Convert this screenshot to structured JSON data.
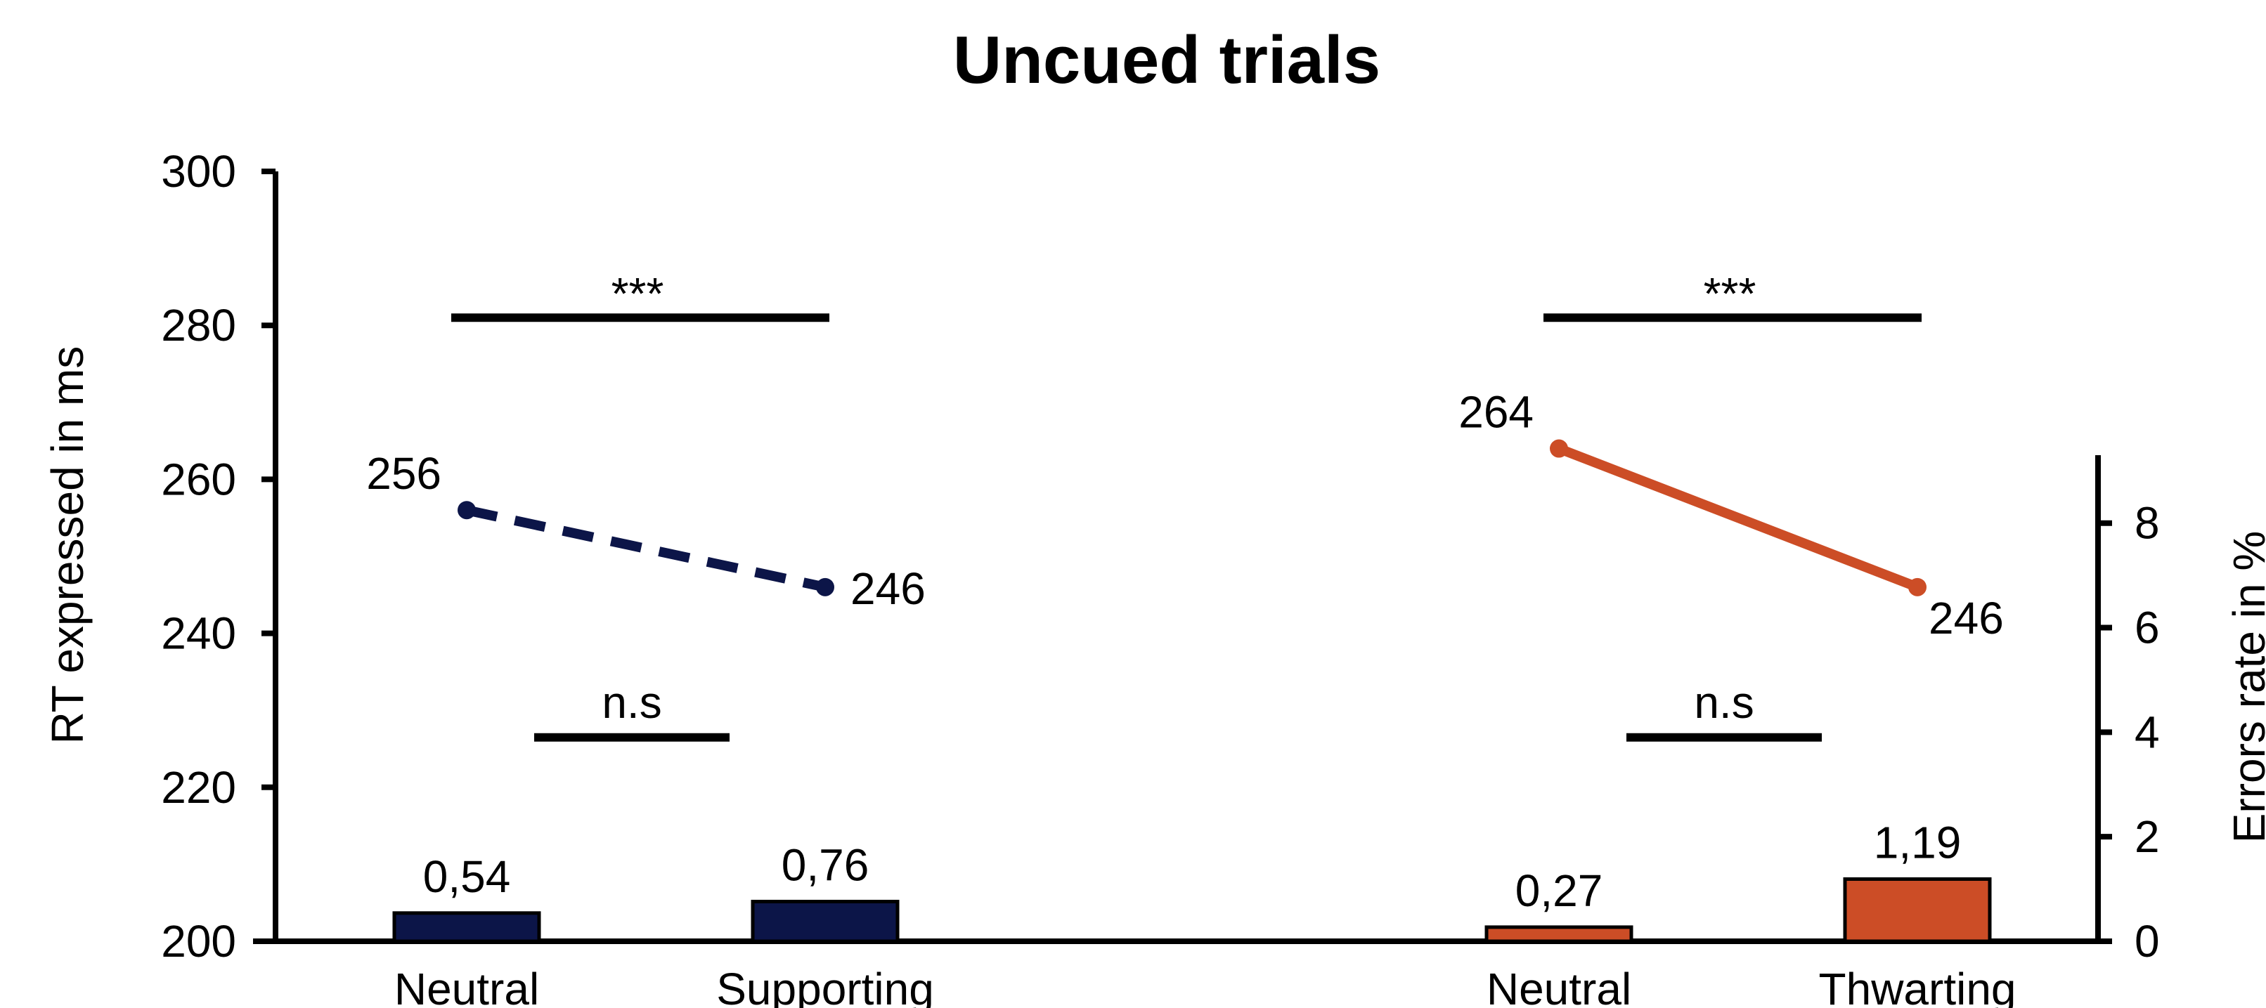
{
  "chart_data": {
    "type": "bar+line",
    "title": "Uncued trials",
    "ylabel_left": "RT expressed in ms",
    "ylabel_right": "Errors rate in %",
    "ylim_left": [
      200,
      300
    ],
    "yticks_left": [
      "200",
      "220",
      "240",
      "260",
      "280",
      "300"
    ],
    "ylim_right": [
      0,
      9.3
    ],
    "yticks_right": [
      "0",
      "2",
      "4",
      "6",
      "8"
    ],
    "categories": [
      "Neutral",
      "Supporting",
      "Neutral",
      "Thwarting"
    ],
    "groups": [
      {
        "color": "#0c1548",
        "line_style": "dashed",
        "rt": [
          256,
          246
        ],
        "rt_labels": [
          "256",
          "246"
        ],
        "errors": [
          0.54,
          0.76
        ],
        "error_labels": [
          "0,54",
          "0,76"
        ],
        "rt_significance": "***",
        "error_significance": "n.s"
      },
      {
        "color": "#cc4d26",
        "line_style": "solid",
        "rt": [
          264,
          246
        ],
        "rt_labels": [
          "264",
          "246"
        ],
        "errors": [
          0.27,
          1.19
        ],
        "error_labels": [
          "0,27",
          "1,19"
        ],
        "rt_significance": "***",
        "error_significance": "n.s"
      }
    ],
    "grid": false,
    "legend": "none"
  }
}
